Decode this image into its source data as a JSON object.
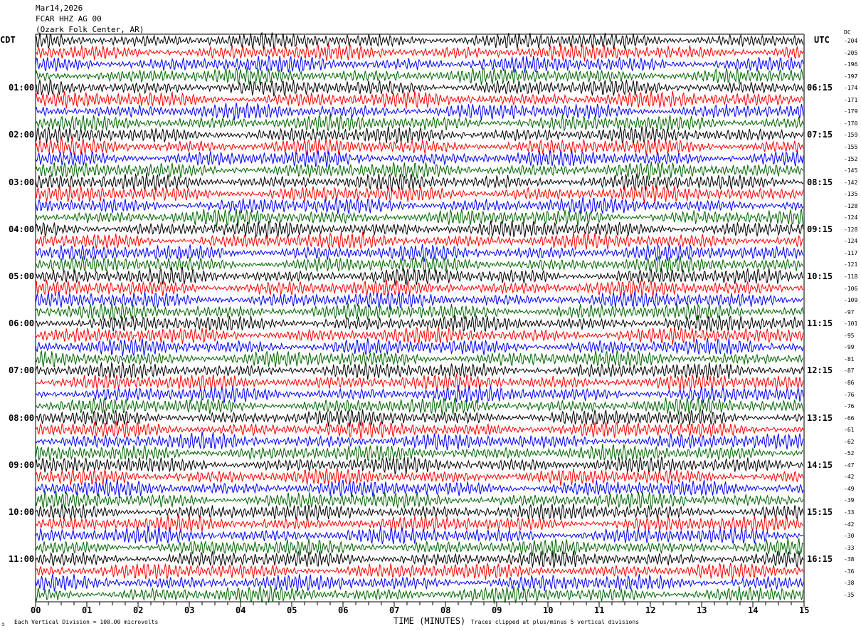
{
  "header": {
    "date": "Mar14,2026",
    "station": "FCAR HHZ AG 00",
    "location": "(Ozark Folk Center, AR)"
  },
  "left_axis": {
    "label": "CDT",
    "hour_labels": [
      "01:00",
      "02:00",
      "03:00",
      "04:00",
      "05:00",
      "06:00",
      "07:00",
      "08:00",
      "09:00",
      "10:00",
      "11:00"
    ]
  },
  "right_axis": {
    "label": "UTC",
    "dc_label": "DC",
    "hour_labels": [
      "06:15",
      "07:15",
      "08:15",
      "09:15",
      "10:15",
      "11:15",
      "12:15",
      "13:15",
      "14:15",
      "15:15",
      "16:15"
    ]
  },
  "footer": {
    "scale_note": "Each Vertical Division =  100.00 microvolts",
    "xlabel": "TIME (MINUTES)",
    "clip_note": "Traces clipped at plus/minus 5 vertical divisions",
    "corner_mark": "ↄ"
  },
  "chart_data": {
    "type": "line",
    "title": "FCAR HHZ AG 00",
    "xlabel": "TIME (MINUTES)",
    "xlim": [
      0,
      15
    ],
    "x_tick_labels": [
      "00",
      "01",
      "02",
      "03",
      "04",
      "05",
      "06",
      "07",
      "08",
      "09",
      "10",
      "11",
      "12",
      "13",
      "14",
      "15"
    ],
    "rows_per_hour": 4,
    "row_count": 48,
    "trace_colors": [
      "#000000",
      "#ff0000",
      "#0000ff",
      "#006400"
    ],
    "dc_offsets": [
      -204,
      -205,
      -196,
      -197,
      -174,
      -171,
      -179,
      -170,
      -159,
      -155,
      -152,
      -145,
      -142,
      -135,
      -128,
      -124,
      -128,
      -124,
      -117,
      -121,
      -118,
      -106,
      -109,
      -97,
      -101,
      -95,
      -99,
      -81,
      -87,
      -86,
      -76,
      -76,
      -66,
      -61,
      -62,
      -52,
      -47,
      -42,
      -49,
      -39,
      -33,
      -42,
      -30,
      -33,
      -38,
      -36,
      -38,
      -35
    ]
  }
}
